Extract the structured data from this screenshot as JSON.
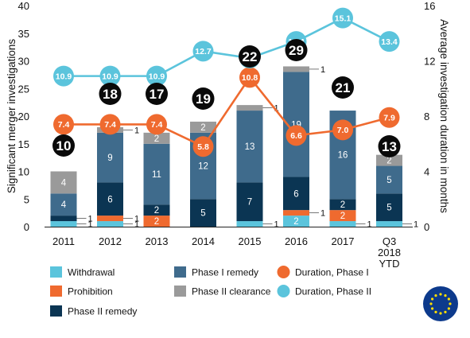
{
  "chart_data": {
    "type": "bar",
    "stacked": true,
    "categories": [
      "2011",
      "2012",
      "2013",
      "2014",
      "2015",
      "2016",
      "2017",
      "Q3\n2018\nYTD"
    ],
    "ylabel": "Significant merger investigations",
    "y2label": "Average investigation duration in months",
    "ylim": [
      0,
      40
    ],
    "y2lim": [
      0,
      16
    ],
    "yticks": [
      0,
      5,
      10,
      15,
      20,
      25,
      30,
      35,
      40
    ],
    "y2ticks": [
      0,
      4,
      8,
      12,
      16
    ],
    "series": [
      {
        "name": "Withdrawal",
        "key": "withdrawal",
        "color": "#5bc4dc",
        "values": [
          1,
          1,
          0,
          0,
          1,
          2,
          1,
          1
        ]
      },
      {
        "name": "Prohibition",
        "key": "prohibition",
        "color": "#ef6a2f",
        "values": [
          0,
          1,
          2,
          0,
          0,
          1,
          2,
          0
        ]
      },
      {
        "name": "Phase II remedy",
        "key": "phase2_remedy",
        "color": "#0b3553",
        "values": [
          1,
          6,
          2,
          5,
          7,
          6,
          2,
          5
        ]
      },
      {
        "name": "Phase I remedy",
        "key": "phase1_remedy",
        "color": "#3f6b8c",
        "values": [
          4,
          9,
          11,
          12,
          13,
          19,
          16,
          5
        ]
      },
      {
        "name": "Phase II clearance",
        "key": "phase2_clearance",
        "color": "#9a9a9a",
        "values": [
          4,
          1,
          2,
          2,
          1,
          1,
          0,
          2
        ]
      }
    ],
    "segment_labels": [
      [
        "1",
        "",
        "1",
        "4",
        "4"
      ],
      [
        "1",
        "1",
        "6",
        "9",
        "1"
      ],
      [
        "",
        "2",
        "2",
        "11",
        "2"
      ],
      [
        "",
        "",
        "5",
        "12",
        "2"
      ],
      [
        "1",
        "",
        "7",
        "13",
        "1"
      ],
      [
        "2",
        "1",
        "6",
        "19",
        "1"
      ],
      [
        "1",
        "2",
        "2",
        "16",
        ""
      ],
      [
        "1",
        "",
        "5",
        "5",
        "2"
      ]
    ],
    "totals": [
      10,
      18,
      17,
      19,
      22,
      29,
      21,
      13
    ],
    "lines": [
      {
        "name": "Duration, Phase I",
        "key": "duration_phase1",
        "color": "#ef6a2f",
        "axis": "right",
        "values": [
          7.4,
          7.4,
          7.4,
          5.8,
          10.8,
          6.6,
          7.0,
          7.9
        ]
      },
      {
        "name": "Duration, Phase II",
        "key": "duration_phase2",
        "color": "#5bc4dc",
        "axis": "right",
        "values": [
          10.9,
          10.9,
          10.9,
          12.7,
          12.2,
          13.4,
          15.1,
          13.4
        ]
      }
    ],
    "legend_placement": "bottom"
  },
  "logo": {
    "name": "eu-flag-logo",
    "background": "#0d3a8c",
    "star_color": "#ffde00"
  }
}
